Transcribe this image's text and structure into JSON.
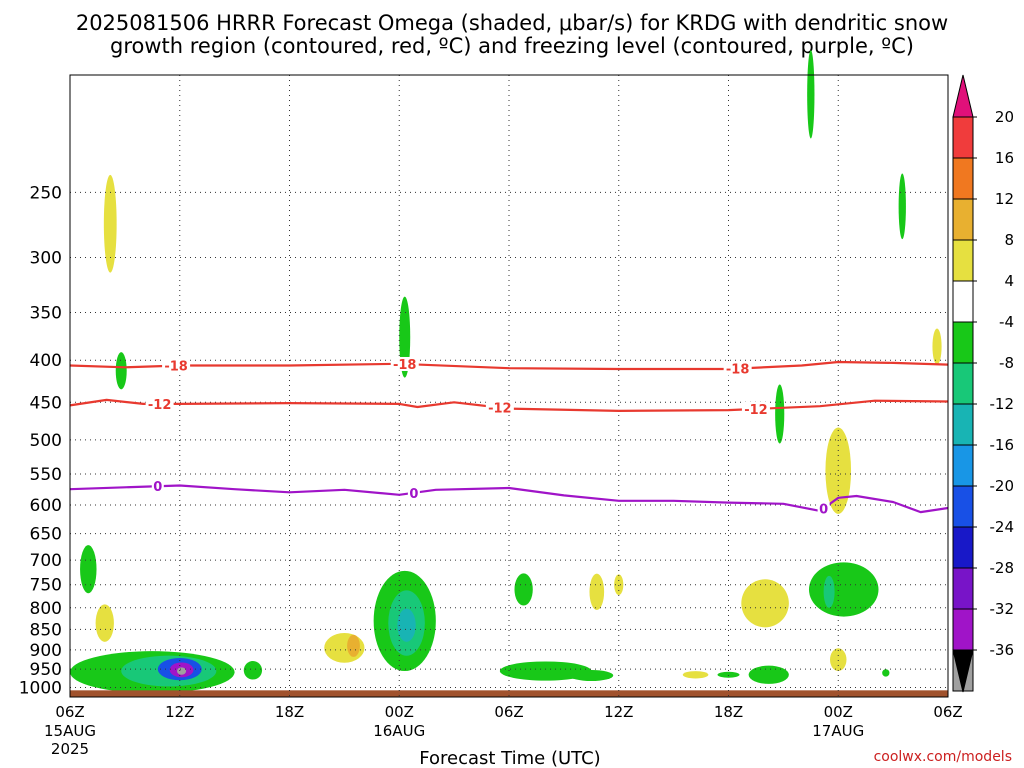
{
  "title_lines": [
    "2025081506 HRRR Forecast Omega (shaded, μbar/s) for KRDG with dendritic snow",
    "growth region (contoured, red, ºC) and freezing level (contoured, purple, ºC)"
  ],
  "credit": "coolwx.com/models",
  "chart_data": {
    "type": "heatmap",
    "xlabel": "Forecast Time (UTC)",
    "x_range_hours": [
      0,
      48
    ],
    "y_axis": {
      "scale": "pressure (inverted)",
      "range": [
        1027,
        180
      ],
      "tick_values": [
        250,
        300,
        350,
        400,
        450,
        500,
        550,
        600,
        650,
        700,
        750,
        800,
        850,
        900,
        950,
        1000
      ]
    },
    "x_ticks": [
      {
        "hour": 0,
        "label": "06Z",
        "sub": "15AUG",
        "sub2": "2025"
      },
      {
        "hour": 6,
        "label": "12Z"
      },
      {
        "hour": 12,
        "label": "18Z"
      },
      {
        "hour": 18,
        "label": "00Z",
        "sub": "16AUG"
      },
      {
        "hour": 24,
        "label": "06Z"
      },
      {
        "hour": 30,
        "label": "12Z"
      },
      {
        "hour": 36,
        "label": "18Z"
      },
      {
        "hour": 42,
        "label": "00Z",
        "sub": "17AUG"
      },
      {
        "hour": 48,
        "label": "06Z"
      }
    ],
    "grid": true,
    "ground_color": "#a0522d",
    "ground_top_hpa": 1008,
    "colorbar": {
      "units": "μbar/s",
      "labels": [
        "20",
        "16",
        "12",
        "8",
        "4",
        "-4",
        "-8",
        "-12",
        "-16",
        "-20",
        "-24",
        "-28",
        "-32",
        "-36"
      ],
      "colors": [
        "#e0107a",
        "#f03c3c",
        "#f07820",
        "#e8b030",
        "#e6e040",
        "#ffffff",
        "#18c818",
        "#18c878",
        "#18b4b4",
        "#1896e6",
        "#1850e6",
        "#1818c8",
        "#7814c8",
        "#a014c8",
        "#a0a0a0",
        "#000000"
      ]
    },
    "omega_regions": [
      {
        "hour": 2.2,
        "hpa": 273,
        "dh": 0.35,
        "dp": 40,
        "value": 5
      },
      {
        "hour": 2.8,
        "hpa": 412,
        "dh": 0.3,
        "dp": 22,
        "value": -6
      },
      {
        "hour": 1.0,
        "hpa": 718,
        "dh": 0.45,
        "dp": 50,
        "value": -6
      },
      {
        "hour": 1.9,
        "hpa": 835,
        "dh": 0.5,
        "dp": 45,
        "value": 5
      },
      {
        "hour": 4.5,
        "hpa": 958,
        "dh": 4.5,
        "dp": 58,
        "value": -6
      },
      {
        "hour": 5.4,
        "hpa": 955,
        "dh": 2.6,
        "dp": 42,
        "value": -12
      },
      {
        "hour": 6.0,
        "hpa": 950,
        "dh": 1.2,
        "dp": 30,
        "value": -22
      },
      {
        "hour": 6.1,
        "hpa": 952,
        "dh": 0.65,
        "dp": 20,
        "value": -30
      },
      {
        "hour": 6.1,
        "hpa": 955,
        "dh": 0.25,
        "dp": 10,
        "value": -36
      },
      {
        "hour": 10.0,
        "hpa": 953,
        "dh": 0.5,
        "dp": 25,
        "value": -6
      },
      {
        "hour": 15.0,
        "hpa": 895,
        "dh": 1.1,
        "dp": 38,
        "value": 5
      },
      {
        "hour": 15.5,
        "hpa": 890,
        "dh": 0.35,
        "dp": 28,
        "value": 10
      },
      {
        "hour": 18.3,
        "hpa": 375,
        "dh": 0.3,
        "dp": 45,
        "value": -6
      },
      {
        "hour": 18.3,
        "hpa": 830,
        "dh": 1.7,
        "dp": 125,
        "value": -6
      },
      {
        "hour": 18.4,
        "hpa": 835,
        "dh": 1.0,
        "dp": 80,
        "value": -9
      },
      {
        "hour": 18.4,
        "hpa": 840,
        "dh": 0.5,
        "dp": 40,
        "value": -13
      },
      {
        "hour": 26.0,
        "hpa": 955,
        "dh": 2.5,
        "dp": 26,
        "value": -6
      },
      {
        "hour": 28.5,
        "hpa": 967,
        "dh": 1.2,
        "dp": 15,
        "value": -6
      },
      {
        "hour": 24.8,
        "hpa": 760,
        "dh": 0.5,
        "dp": 35,
        "value": -6
      },
      {
        "hour": 28.8,
        "hpa": 765,
        "dh": 0.4,
        "dp": 40,
        "value": 5
      },
      {
        "hour": 30.0,
        "hpa": 750,
        "dh": 0.25,
        "dp": 22,
        "value": 5
      },
      {
        "hour": 34.2,
        "hpa": 965,
        "dh": 0.7,
        "dp": 10,
        "value": 5
      },
      {
        "hour": 38.2,
        "hpa": 965,
        "dh": 1.1,
        "dp": 25,
        "value": -6
      },
      {
        "hour": 36.0,
        "hpa": 965,
        "dh": 0.6,
        "dp": 5,
        "value": -6
      },
      {
        "hour": 38.0,
        "hpa": 790,
        "dh": 1.3,
        "dp": 55,
        "value": 5
      },
      {
        "hour": 38.8,
        "hpa": 465,
        "dh": 0.25,
        "dp": 40,
        "value": -6
      },
      {
        "hour": 40.5,
        "hpa": 190,
        "dh": 0.2,
        "dp": 25,
        "value": -6
      },
      {
        "hour": 42.0,
        "hpa": 545,
        "dh": 0.7,
        "dp": 70,
        "value": 5
      },
      {
        "hour": 42.3,
        "hpa": 760,
        "dh": 1.9,
        "dp": 60,
        "value": -6
      },
      {
        "hour": 41.5,
        "hpa": 765,
        "dh": 0.3,
        "dp": 35,
        "value": -11
      },
      {
        "hour": 42.0,
        "hpa": 925,
        "dh": 0.45,
        "dp": 30,
        "value": 5
      },
      {
        "hour": 44.6,
        "hpa": 960,
        "dh": 0.2,
        "dp": 10,
        "value": -6
      },
      {
        "hour": 45.5,
        "hpa": 260,
        "dh": 0.2,
        "dp": 25,
        "value": -6
      },
      {
        "hour": 47.4,
        "hpa": 385,
        "dh": 0.25,
        "dp": 20,
        "value": 5
      }
    ],
    "contours": [
      {
        "label": "-18",
        "color": "#e8392f",
        "hours": [
          0,
          3,
          6,
          12,
          18,
          24,
          30,
          36,
          40,
          42,
          45,
          48
        ],
        "hpa": [
          406,
          408,
          406,
          406,
          404,
          409,
          410,
          410,
          406,
          402,
          403,
          405
        ],
        "label_hours": [
          5.8,
          18.3,
          36.5
        ]
      },
      {
        "label": "-12",
        "color": "#e8392f",
        "hours": [
          0,
          2,
          4,
          6,
          12,
          18,
          19,
          21,
          24,
          30,
          36,
          41,
          44,
          48
        ],
        "hpa": [
          454,
          447,
          452,
          452,
          451,
          452,
          456,
          450,
          458,
          461,
          460,
          455,
          448,
          449
        ],
        "label_hours": [
          4.9,
          23.5,
          37.5
        ]
      },
      {
        "label": "0",
        "color": "#a014c8",
        "hours": [
          0,
          3,
          6,
          9,
          12,
          15,
          18,
          20,
          24,
          27,
          30,
          33,
          36,
          39,
          41,
          42,
          43,
          45,
          46.5,
          48
        ],
        "hpa": [
          574,
          571,
          568,
          574,
          579,
          575,
          583,
          575,
          572,
          584,
          593,
          593,
          596,
          598,
          610,
          588,
          585,
          595,
          612,
          605
        ],
        "label_hours": [
          4.8,
          18.8,
          41.2
        ]
      }
    ]
  }
}
